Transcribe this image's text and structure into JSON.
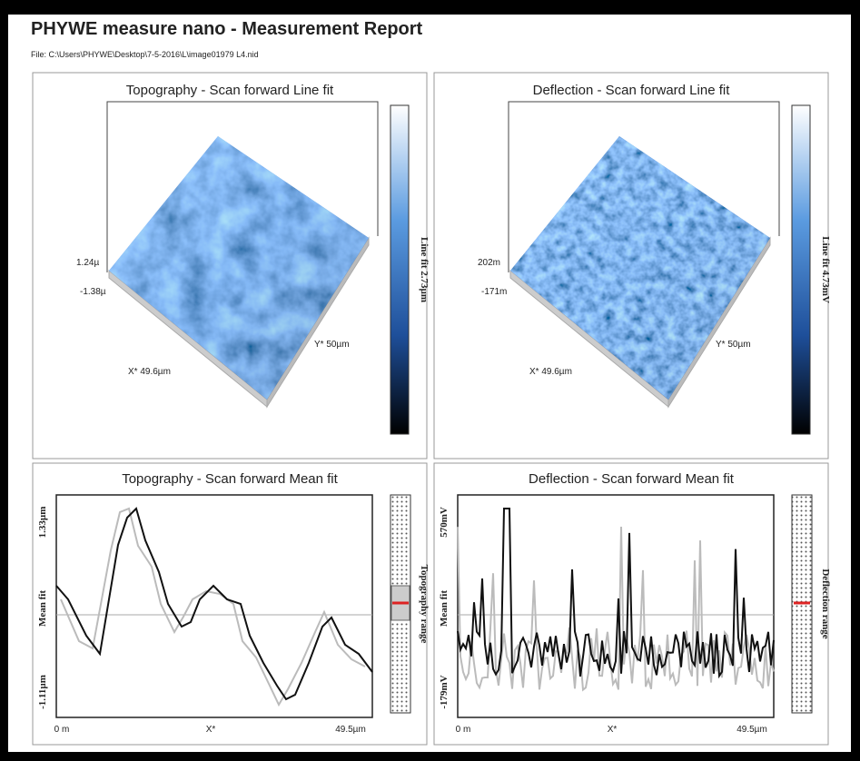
{
  "header": {
    "title": "PHYWE measure nano - Measurement Report",
    "file": "File: C:\\Users\\PHYWE\\Desktop\\7-5-2016\\L\\image01979   L4.nid"
  },
  "panels": [
    {
      "title": "Topography - Scan forward   Line fit",
      "z_max": "1.24µ",
      "z_min": "-1.38µ",
      "x_label": "X* 49.6µm",
      "y_label": "Y* 50µm",
      "colorbar_label": "Line fit 2.73µm"
    },
    {
      "title": "Deflection - Scan forward   Line fit",
      "z_max": "202m",
      "z_min": "-171m",
      "x_label": "X* 49.6µm",
      "y_label": "Y* 50µm",
      "colorbar_label": "Line fit 4.73mV"
    }
  ],
  "profiles": [
    {
      "title": "Topography - Scan forward   Mean fit",
      "y_top": "1.33µm",
      "y_mid": "Mean fit",
      "y_bottom": "-1.11µm",
      "x_start": "0 m",
      "x_mid": "X*",
      "x_end": "49.5µm",
      "range_label": "Topography range"
    },
    {
      "title": "Deflection - Scan forward   Mean fit",
      "y_top": "570mV",
      "y_mid": "Mean fit",
      "y_bottom": "-179mV",
      "x_start": "0 m",
      "x_mid": "X*",
      "x_end": "49.5µm",
      "range_label": "Deflection range"
    }
  ]
}
